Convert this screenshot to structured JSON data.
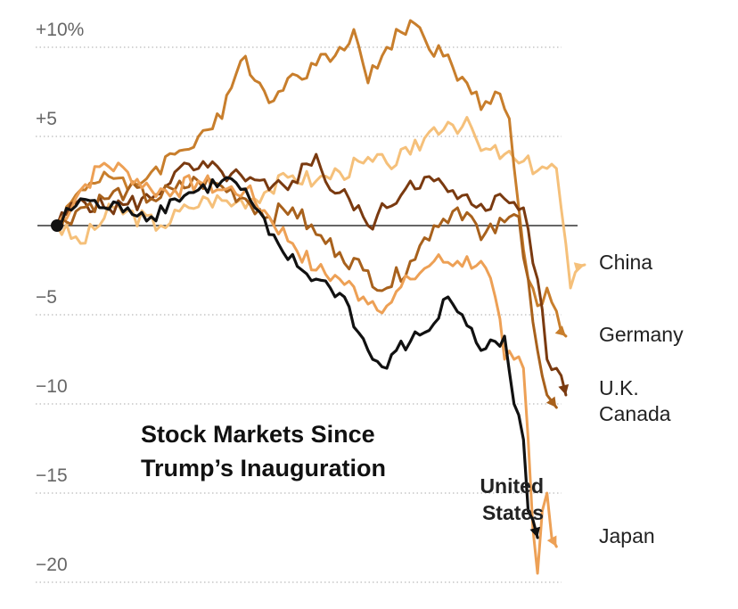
{
  "chart_data": {
    "type": "line",
    "title_lines": [
      "Stock Markets Since",
      "Trump’s Inauguration"
    ],
    "xlabel": "",
    "ylabel": "",
    "y_ticks": [
      {
        "value": 10,
        "label": "+10%"
      },
      {
        "value": 5,
        "label": "+5"
      },
      {
        "value": 0,
        "label": ""
      },
      {
        "value": -5,
        "label": "−5"
      },
      {
        "value": -10,
        "label": "−10"
      },
      {
        "value": -15,
        "label": "−15"
      },
      {
        "value": -20,
        "label": "−20"
      }
    ],
    "ylim": [
      -20.5,
      12.5
    ],
    "grid": true,
    "n_points": 100,
    "colors": {
      "china": "#f5c07a",
      "germany": "#c87e2c",
      "uk": "#7a3a10",
      "canada": "#a8611c",
      "japan": "#eda055",
      "us": "#111111",
      "zero_line": "#333333"
    },
    "series": [
      {
        "key": "china",
        "name": "China",
        "color": "#f5c07a",
        "anchors": [
          [
            0,
            0
          ],
          [
            5,
            -1
          ],
          [
            12,
            1
          ],
          [
            22,
            0
          ],
          [
            28,
            1
          ],
          [
            32,
            1.5
          ],
          [
            38,
            1.3
          ],
          [
            45,
            2
          ],
          [
            50,
            2.8
          ],
          [
            55,
            2.5
          ],
          [
            60,
            3
          ],
          [
            65,
            3.5
          ],
          [
            70,
            3.5
          ],
          [
            75,
            4
          ],
          [
            80,
            5.5
          ],
          [
            83,
            5.8
          ],
          [
            88,
            5.5
          ],
          [
            90,
            4.2
          ],
          [
            95,
            4
          ],
          [
            98,
            3.5
          ],
          [
            103,
            3.3
          ],
          [
            106,
            3.2
          ],
          [
            109,
            -3.5
          ],
          [
            112,
            -2.2
          ]
        ]
      },
      {
        "key": "germany",
        "name": "Germany",
        "color": "#c87e2c",
        "anchors": [
          [
            0,
            0
          ],
          [
            5,
            2
          ],
          [
            10,
            3
          ],
          [
            15,
            2
          ],
          [
            20,
            3
          ],
          [
            25,
            4
          ],
          [
            30,
            5
          ],
          [
            35,
            6
          ],
          [
            38,
            8.5
          ],
          [
            40,
            9.5
          ],
          [
            43,
            8
          ],
          [
            46,
            7
          ],
          [
            50,
            8.5
          ],
          [
            55,
            9
          ],
          [
            60,
            10
          ],
          [
            63,
            11
          ],
          [
            66,
            8
          ],
          [
            70,
            10
          ],
          [
            75,
            11.5
          ],
          [
            78,
            10.5
          ],
          [
            82,
            9.5
          ],
          [
            87,
            8
          ],
          [
            90,
            6.5
          ],
          [
            93,
            7.5
          ],
          [
            96,
            6
          ],
          [
            98,
            1
          ],
          [
            100,
            -3
          ],
          [
            102,
            -4.5
          ],
          [
            104,
            -3.5
          ],
          [
            108,
            -6.2
          ]
        ]
      },
      {
        "key": "uk",
        "name": "U.K.",
        "color": "#7a3a10",
        "anchors": [
          [
            0,
            0
          ],
          [
            5,
            1.5
          ],
          [
            10,
            1
          ],
          [
            15,
            1.2
          ],
          [
            20,
            1.5
          ],
          [
            25,
            3
          ],
          [
            30,
            3.2
          ],
          [
            35,
            3
          ],
          [
            40,
            2.5
          ],
          [
            45,
            2
          ],
          [
            50,
            2.5
          ],
          [
            55,
            4
          ],
          [
            58,
            2
          ],
          [
            62,
            1.5
          ],
          [
            66,
            0
          ],
          [
            70,
            1
          ],
          [
            75,
            2.5
          ],
          [
            80,
            2.5
          ],
          [
            85,
            1.5
          ],
          [
            90,
            1.2
          ],
          [
            95,
            1.5
          ],
          [
            99,
            1
          ],
          [
            102,
            -3
          ],
          [
            104,
            -7.5
          ],
          [
            106,
            -8
          ],
          [
            108,
            -9.5
          ]
        ]
      },
      {
        "key": "canada",
        "name": "Canada",
        "color": "#a8611c",
        "anchors": [
          [
            0,
            0
          ],
          [
            5,
            1
          ],
          [
            10,
            1.5
          ],
          [
            15,
            2
          ],
          [
            20,
            1.5
          ],
          [
            25,
            2
          ],
          [
            30,
            2.5
          ],
          [
            35,
            2.2
          ],
          [
            40,
            1.5
          ],
          [
            45,
            0.5
          ],
          [
            50,
            1
          ],
          [
            55,
            -0.5
          ],
          [
            60,
            -1.5
          ],
          [
            65,
            -2.5
          ],
          [
            70,
            -3.5
          ],
          [
            75,
            -2
          ],
          [
            80,
            0
          ],
          [
            85,
            1
          ],
          [
            88,
            0.5
          ],
          [
            90,
            -0.8
          ],
          [
            95,
            0.2
          ],
          [
            98,
            0.5
          ],
          [
            100,
            -3
          ],
          [
            102,
            -7
          ],
          [
            104,
            -9.5
          ],
          [
            106,
            -10.2
          ]
        ]
      },
      {
        "key": "japan",
        "name": "Japan",
        "color": "#eda055",
        "anchors": [
          [
            0,
            0
          ],
          [
            5,
            2
          ],
          [
            10,
            3.5
          ],
          [
            15,
            3
          ],
          [
            20,
            2
          ],
          [
            25,
            2
          ],
          [
            30,
            2.5
          ],
          [
            35,
            2
          ],
          [
            40,
            2
          ],
          [
            45,
            0.5
          ],
          [
            50,
            -1
          ],
          [
            55,
            -2.5
          ],
          [
            60,
            -3
          ],
          [
            65,
            -4
          ],
          [
            70,
            -4.5
          ],
          [
            75,
            -3
          ],
          [
            80,
            -2
          ],
          [
            85,
            -2
          ],
          [
            90,
            -2
          ],
          [
            93,
            -4
          ],
          [
            95,
            -7.5
          ],
          [
            97,
            -7.5
          ],
          [
            99,
            -8
          ],
          [
            100,
            -12
          ],
          [
            101,
            -17
          ],
          [
            102,
            -19.5
          ],
          [
            103,
            -16
          ],
          [
            104,
            -15
          ],
          [
            105,
            -17.5
          ],
          [
            106,
            -18
          ]
        ]
      },
      {
        "key": "us",
        "name": "United States",
        "color": "#111111",
        "anchors": [
          [
            0,
            0
          ],
          [
            5,
            1.5
          ],
          [
            10,
            1
          ],
          [
            15,
            1
          ],
          [
            20,
            0.5
          ],
          [
            25,
            1.5
          ],
          [
            30,
            2
          ],
          [
            35,
            2.5
          ],
          [
            38,
            2.4
          ],
          [
            42,
            1
          ],
          [
            45,
            -0.5
          ],
          [
            48,
            -1.5
          ],
          [
            52,
            -2.5
          ],
          [
            55,
            -3
          ],
          [
            58,
            -3.5
          ],
          [
            61,
            -4
          ],
          [
            64,
            -6
          ],
          [
            67,
            -7.5
          ],
          [
            70,
            -8
          ],
          [
            72,
            -7
          ],
          [
            75,
            -6.5
          ],
          [
            78,
            -6
          ],
          [
            80,
            -5.5
          ],
          [
            83,
            -4
          ],
          [
            86,
            -5
          ],
          [
            90,
            -7
          ],
          [
            93,
            -6.5
          ],
          [
            95,
            -6.2
          ],
          [
            97,
            -10
          ],
          [
            99,
            -12
          ],
          [
            100,
            -16
          ],
          [
            101,
            -16.5
          ],
          [
            102,
            -17.5
          ]
        ]
      }
    ],
    "labels": {
      "china": "China",
      "germany": "Germany",
      "uk": "U.K.",
      "canada": "Canada",
      "japan": "Japan",
      "us_line1": "United",
      "us_line2": "States"
    }
  }
}
